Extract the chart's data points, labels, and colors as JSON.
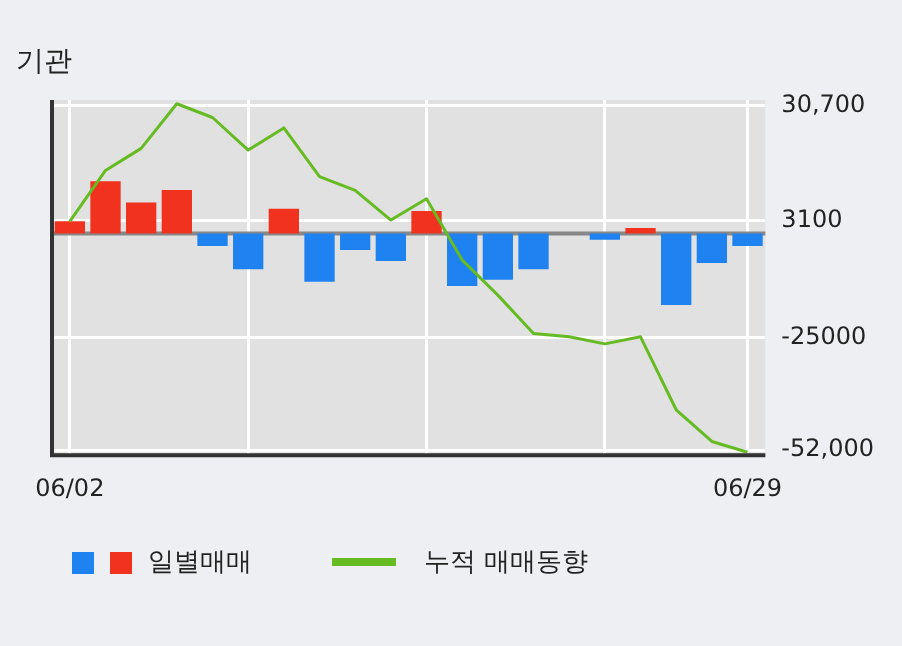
{
  "chart_data": {
    "type": "bar",
    "title": "기관",
    "categories": [
      "06/02",
      null,
      null,
      null,
      null,
      null,
      null,
      null,
      null,
      null,
      null,
      null,
      null,
      null,
      null,
      null,
      null,
      null,
      null,
      "06/29"
    ],
    "series": [
      {
        "name": "일별매매",
        "colors": [
          "#f0321e",
          "#f0321e",
          "#f0321e",
          "#f0321e",
          "#1e82f0",
          "#1e82f0",
          "#f0321e",
          "#1e82f0",
          "#1e82f0",
          "#1e82f0",
          "#f0321e",
          "#1e82f0",
          "#1e82f0",
          "#1e82f0",
          "#1e82f0",
          "#1e82f0",
          "#f0321e",
          "#1e82f0",
          "#1e82f0",
          "#1e82f0"
        ],
        "values": [
          2900,
          12500,
          7400,
          10400,
          -3000,
          -8600,
          5900,
          -11600,
          -4000,
          -6600,
          5400,
          -12600,
          -11100,
          -8600,
          0,
          -1500,
          1300,
          -17200,
          -7100,
          -3000
        ]
      },
      {
        "name": "누적 매매동향",
        "type": "line",
        "color": "#66bb22",
        "values": [
          2900,
          15100,
          20400,
          31100,
          27800,
          20000,
          25300,
          13600,
          10300,
          3200,
          8300,
          -6400,
          -14800,
          -24000,
          -24800,
          -26500,
          -24800,
          -42300,
          -49900,
          -52500
        ]
      }
    ],
    "ylim": [
      -53200,
      32000
    ],
    "yticks": [
      {
        "value": 30700,
        "label": "30,700"
      },
      3100,
      -25000,
      {
        "value": -52000,
        "label": "-52,000"
      }
    ],
    "grid": true,
    "legend": "bottom",
    "marker": "none",
    "line_style": "solid"
  }
}
